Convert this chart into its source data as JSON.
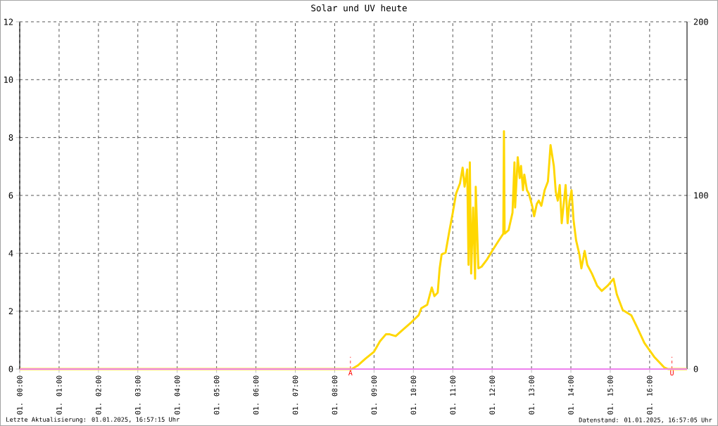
{
  "chart_data": {
    "type": "line",
    "title": "Solar und UV heute",
    "annotations": [
      "Letzte Aktualisierung: 01.01.2025, 16:57:15 Uhr",
      "Datenstand: 01.01.2025, 16:57:05 Uhr"
    ],
    "series": [
      {
        "color": "#ffd700",
        "axis": "y2",
        "x": [
          "2025-01-01T00:00",
          "2025-01-01T08:26",
          "2025-01-01T08:35",
          "2025-01-01T08:47",
          "2025-01-01T09:00",
          "2025-01-01T09:09",
          "2025-01-01T09:18",
          "2025-01-01T09:24",
          "2025-01-01T09:33",
          "2025-01-01T09:42",
          "2025-01-01T09:57",
          "2025-01-01T10:08",
          "2025-01-01T10:12",
          "2025-01-01T10:21",
          "2025-01-01T10:28",
          "2025-01-01T10:32",
          "2025-01-01T10:37",
          "2025-01-01T10:40",
          "2025-01-01T10:43",
          "2025-01-01T10:49",
          "2025-01-01T10:55",
          "2025-01-01T11:00",
          "2025-01-01T11:05",
          "2025-01-01T11:11",
          "2025-01-01T11:15",
          "2025-01-01T11:18",
          "2025-01-01T11:22",
          "2025-01-01T11:24",
          "2025-01-01T11:26",
          "2025-01-01T11:28",
          "2025-01-01T11:31",
          "2025-01-01T11:34",
          "2025-01-01T11:35",
          "2025-01-01T11:39",
          "2025-01-01T11:44",
          "2025-01-01T11:52",
          "2025-01-01T12:00",
          "2025-01-01T12:10",
          "2025-01-01T12:17",
          "2025-01-01T12:18",
          "2025-01-01T12:19",
          "2025-01-01T12:25",
          "2025-01-01T12:31",
          "2025-01-01T12:34",
          "2025-01-01T12:35",
          "2025-01-01T12:39",
          "2025-01-01T12:42",
          "2025-01-01T12:44",
          "2025-01-01T12:47",
          "2025-01-01T12:49",
          "2025-01-01T12:53",
          "2025-01-01T12:56",
          "2025-01-01T13:01",
          "2025-01-01T13:04",
          "2025-01-01T13:08",
          "2025-01-01T13:11",
          "2025-01-01T13:15",
          "2025-01-01T13:20",
          "2025-01-01T13:25",
          "2025-01-01T13:29",
          "2025-01-01T13:34",
          "2025-01-01T13:37",
          "2025-01-01T13:40",
          "2025-01-01T13:43",
          "2025-01-01T13:46",
          "2025-01-01T13:52",
          "2025-01-01T13:55",
          "2025-01-01T13:58",
          "2025-01-01T14:01",
          "2025-01-01T14:04",
          "2025-01-01T14:08",
          "2025-01-01T14:13",
          "2025-01-01T14:16",
          "2025-01-01T14:21",
          "2025-01-01T14:25",
          "2025-01-01T14:32",
          "2025-01-01T14:40",
          "2025-01-01T14:47",
          "2025-01-01T14:56",
          "2025-01-01T15:05",
          "2025-01-01T15:10",
          "2025-01-01T15:19",
          "2025-01-01T15:32",
          "2025-01-01T15:41",
          "2025-01-01T15:52",
          "2025-01-01T16:07",
          "2025-01-01T16:22",
          "2025-01-01T16:28",
          "2025-01-01T16:57"
        ],
        "values": [
          0,
          0,
          2,
          6,
          10,
          16,
          20,
          20,
          19,
          22,
          27,
          31,
          35,
          37,
          47,
          42,
          44,
          58,
          66,
          67,
          80,
          90,
          101,
          107,
          116,
          105,
          115,
          60,
          119,
          55,
          93,
          52,
          105,
          58,
          59,
          63,
          68,
          74,
          78,
          137,
          78,
          80,
          90,
          119,
          93,
          122,
          110,
          117,
          103,
          112,
          103,
          101,
          94,
          88,
          95,
          97,
          94,
          103,
          108,
          129,
          117,
          102,
          97,
          106,
          84,
          106,
          84,
          97,
          103,
          86,
          74,
          66,
          58,
          68,
          60,
          55,
          48,
          45,
          48,
          52,
          43,
          34,
          31,
          24,
          15,
          7,
          1,
          0,
          0
        ]
      },
      {
        "color": "#ee82ee",
        "axis": "y",
        "x": [
          "2025-01-01T00:00",
          "2025-01-01T16:57"
        ],
        "values": [
          0,
          0
        ]
      }
    ],
    "xlim": [
      "2025-01-01T00:00",
      "2025-01-01T16:57"
    ],
    "xticks": [
      {
        "value": "2025-01-01T00:00",
        "label": "01. 00:00"
      },
      {
        "value": "2025-01-01T01:00",
        "label": "01. 01:00"
      },
      {
        "value": "2025-01-01T02:00",
        "label": "01. 02:00"
      },
      {
        "value": "2025-01-01T03:00",
        "label": "01. 03:00"
      },
      {
        "value": "2025-01-01T04:00",
        "label": "01. 04:00"
      },
      {
        "value": "2025-01-01T05:00",
        "label": "01. 05:00"
      },
      {
        "value": "2025-01-01T06:00",
        "label": "01. 06:00"
      },
      {
        "value": "2025-01-01T07:00",
        "label": "01. 07:00"
      },
      {
        "value": "2025-01-01T08:00",
        "label": "01. 08:00"
      },
      {
        "value": "2025-01-01T09:00",
        "label": "01. 09:00"
      },
      {
        "value": "2025-01-01T10:00",
        "label": "01. 10:00"
      },
      {
        "value": "2025-01-01T11:00",
        "label": "01. 11:00"
      },
      {
        "value": "2025-01-01T12:00",
        "label": "01. 12:00"
      },
      {
        "value": "2025-01-01T13:00",
        "label": "01. 13:00"
      },
      {
        "value": "2025-01-01T14:00",
        "label": "01. 14:00"
      },
      {
        "value": "2025-01-01T15:00",
        "label": "01. 15:00"
      },
      {
        "value": "2025-01-01T16:00",
        "label": "01. 16:00"
      }
    ],
    "ylim": [
      0,
      12
    ],
    "yticks": [
      0,
      2,
      4,
      6,
      8,
      10,
      12
    ],
    "y2lim": [
      0,
      200
    ],
    "y2ticks": [
      0,
      100,
      200
    ],
    "grid": true,
    "line_style": "solid",
    "marker": "none",
    "ref_lines": [
      {
        "axis": "x",
        "value": "2025-01-01T08:24",
        "label": "A",
        "color": "#ff0000",
        "line_style": "dashed"
      },
      {
        "axis": "x",
        "value": "2025-01-01T16:34",
        "label": "U",
        "color": "#ff0000",
        "line_style": "dashed"
      }
    ]
  }
}
